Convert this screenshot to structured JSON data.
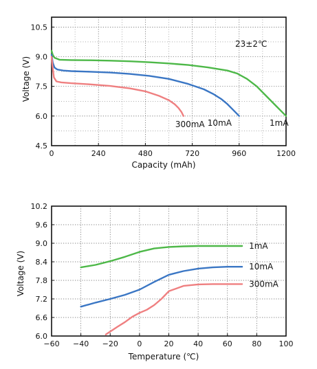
{
  "chart_data": [
    {
      "type": "line",
      "annotation": "23±2℃",
      "xlabel": "Capacity (mAh)",
      "ylabel": "Voltage (V)",
      "xlim": [
        0,
        1200
      ],
      "ylim": [
        4.5,
        11.0
      ],
      "xticks": [
        0,
        240,
        480,
        720,
        960,
        1200
      ],
      "xtick_labels": [
        "0",
        "240",
        "480",
        "720",
        "960",
        "1200"
      ],
      "yticks": [
        4.5,
        6.0,
        7.5,
        9.0,
        10.5
      ],
      "ytick_labels": [
        "4.5",
        "6.0",
        "7.5",
        "9.0",
        "10.5"
      ],
      "grid": true,
      "series": [
        {
          "name": "1mA",
          "color": "#4db848",
          "x": [
            0,
            6,
            15,
            40,
            100,
            200,
            300,
            400,
            500,
            600,
            700,
            800,
            900,
            950,
            1000,
            1050,
            1100,
            1150,
            1200
          ],
          "y": [
            9.3,
            9.1,
            8.95,
            8.85,
            8.83,
            8.82,
            8.8,
            8.77,
            8.72,
            8.66,
            8.58,
            8.46,
            8.3,
            8.15,
            7.88,
            7.5,
            7.0,
            6.5,
            6.0
          ]
        },
        {
          "name": "10mA",
          "color": "#3a76c4",
          "x": [
            0,
            6,
            15,
            30,
            60,
            100,
            200,
            300,
            400,
            500,
            600,
            700,
            780,
            830,
            870,
            900,
            930,
            960
          ],
          "y": [
            9.1,
            8.7,
            8.45,
            8.35,
            8.3,
            8.27,
            8.24,
            8.2,
            8.13,
            8.03,
            7.88,
            7.62,
            7.35,
            7.1,
            6.85,
            6.6,
            6.3,
            6.0
          ]
        },
        {
          "name": "300mA",
          "color": "#ef7f80",
          "x": [
            0,
            5,
            12,
            25,
            50,
            100,
            200,
            300,
            400,
            480,
            550,
            600,
            630,
            650,
            665,
            675
          ],
          "y": [
            9.0,
            8.5,
            7.95,
            7.75,
            7.7,
            7.66,
            7.6,
            7.52,
            7.4,
            7.25,
            7.02,
            6.8,
            6.6,
            6.4,
            6.2,
            6.0
          ]
        }
      ]
    },
    {
      "type": "line",
      "xlabel": "Temperature (℃)",
      "ylabel": "Voltage (V)",
      "xlim": [
        -60,
        100
      ],
      "ylim": [
        6.0,
        10.2
      ],
      "xticks": [
        -60,
        -40,
        -20,
        0,
        20,
        40,
        60,
        80,
        100
      ],
      "xtick_labels": [
        "−60",
        "−40",
        "−20",
        "0",
        "20",
        "40",
        "60",
        "80",
        "100"
      ],
      "yticks": [
        6.0,
        6.6,
        7.2,
        7.8,
        8.4,
        9.0,
        9.6,
        10.2
      ],
      "ytick_labels": [
        "6.0",
        "6.6",
        "7.2",
        "7.8",
        "8.4",
        "9.0",
        "9.6",
        "10.2"
      ],
      "grid": true,
      "series": [
        {
          "name": "1mA",
          "color": "#4db848",
          "x": [
            -40,
            -30,
            -20,
            -10,
            0,
            10,
            20,
            30,
            40,
            50,
            60,
            70
          ],
          "y": [
            8.22,
            8.3,
            8.42,
            8.56,
            8.72,
            8.83,
            8.88,
            8.9,
            8.91,
            8.91,
            8.91,
            8.91
          ]
        },
        {
          "name": "10mA",
          "color": "#3a76c4",
          "x": [
            -40,
            -30,
            -20,
            -10,
            0,
            10,
            20,
            30,
            40,
            50,
            60,
            70
          ],
          "y": [
            6.95,
            7.08,
            7.2,
            7.33,
            7.5,
            7.75,
            7.98,
            8.1,
            8.18,
            8.22,
            8.24,
            8.24
          ]
        },
        {
          "name": "300mA",
          "color": "#ef7f80",
          "x": [
            -23,
            -15,
            -10,
            -5,
            0,
            5,
            10,
            15,
            20,
            30,
            40,
            50,
            60,
            70
          ],
          "y": [
            6.05,
            6.3,
            6.45,
            6.62,
            6.75,
            6.85,
            7.0,
            7.2,
            7.45,
            7.62,
            7.67,
            7.68,
            7.68,
            7.68
          ]
        }
      ]
    }
  ]
}
